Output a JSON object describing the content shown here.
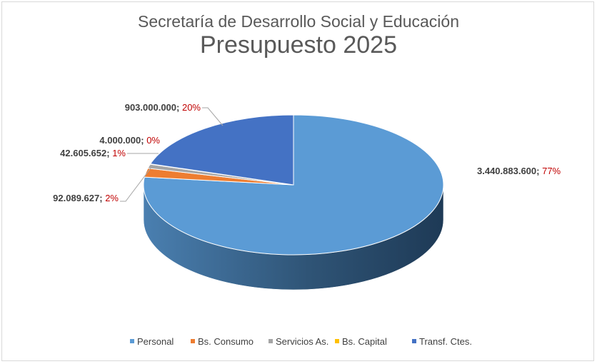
{
  "chart_data": {
    "type": "pie",
    "title": "Secretaría de Desarrollo Social y Educación",
    "subtitle": "Presupuesto 2025",
    "legend_position": "bottom",
    "series": [
      {
        "name": "Personal",
        "value": 3440883600,
        "value_label": "3.440.883.600",
        "percent_label": "77%",
        "color": "#5b9bd5"
      },
      {
        "name": "Bs. Consumo",
        "value": 92089627,
        "value_label": "92.089.627",
        "percent_label": "2%",
        "color": "#ed7d31"
      },
      {
        "name": "Servicios As.",
        "value": 42605652,
        "value_label": "42.605.652",
        "percent_label": "1%",
        "color": "#a5a5a5"
      },
      {
        "name": "Bs. Capital",
        "value": 4000000,
        "value_label": "4.000.000",
        "percent_label": "0%",
        "color": "#ffc000"
      },
      {
        "name": "Transf. Ctes.",
        "value": 903000000,
        "value_label": "903.000.000",
        "percent_label": "20%",
        "color": "#4472c4"
      }
    ]
  }
}
